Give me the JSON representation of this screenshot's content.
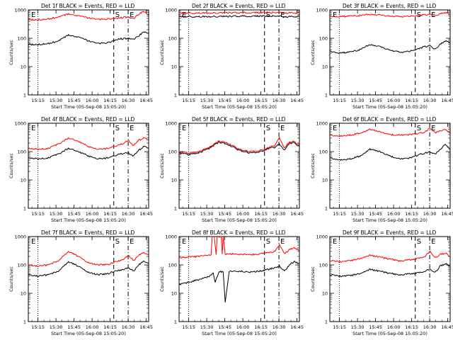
{
  "chart_data": [
    {
      "type": "line",
      "title": "Det 1f BLACK = Events, RED = LLD",
      "xlabel": "Start Time (05-Sep-08 15:05:20)",
      "ylabel": "Counts/sec",
      "ylim": [
        1,
        1000
      ],
      "yscale": "log",
      "x_ticks": [
        "15:15",
        "15:30",
        "15:45",
        "16:00",
        "16:15",
        "16:30",
        "16:45"
      ],
      "y_ticks": [
        "1",
        "10",
        "100",
        "1000"
      ],
      "markers": [
        "E",
        "S",
        "E"
      ],
      "series": [
        {
          "name": "Events",
          "color": "#000000",
          "x": [
            0,
            10,
            20,
            30,
            40,
            50,
            60,
            70,
            80,
            90,
            95,
            100,
            105,
            110,
            115,
            120
          ],
          "y": [
            60,
            60,
            65,
            80,
            130,
            110,
            80,
            65,
            70,
            95,
            95,
            100,
            90,
            120,
            170,
            150
          ]
        },
        {
          "name": "LLD",
          "color": "#ff0000",
          "x": [
            0,
            10,
            20,
            30,
            40,
            50,
            60,
            70,
            80,
            90,
            95,
            100,
            105,
            110,
            115,
            120
          ],
          "y": [
            450,
            450,
            480,
            560,
            720,
            620,
            520,
            460,
            480,
            520,
            540,
            560,
            480,
            700,
            900,
            650
          ]
        }
      ]
    },
    {
      "type": "line",
      "title": "Det 2f BLACK = Events, RED = LLD",
      "xlabel": "Start Time (05-Sep-08 15:05:20)",
      "ylabel": "Counts/sec",
      "ylim": [
        1,
        1000
      ],
      "yscale": "log",
      "x_ticks": [
        "15:15",
        "15:30",
        "15:45",
        "16:00",
        "16:15",
        "16:30",
        "16:45"
      ],
      "y_ticks": [
        "1",
        "10",
        "100",
        "1000"
      ],
      "markers": [
        "E",
        "S",
        "E"
      ],
      "series": [
        {
          "name": "Events",
          "color": "#000000",
          "x": [
            0,
            20,
            40,
            60,
            80,
            95,
            100,
            105,
            110,
            120
          ],
          "y": [
            580,
            580,
            590,
            600,
            600,
            600,
            610,
            560,
            590,
            580
          ]
        },
        {
          "name": "LLD",
          "color": "#ff0000",
          "x": [
            0,
            20,
            40,
            60,
            80,
            95,
            100,
            105,
            110,
            120
          ],
          "y": [
            780,
            780,
            790,
            800,
            800,
            800,
            820,
            760,
            800,
            780
          ]
        }
      ]
    },
    {
      "type": "line",
      "title": "Det 3f BLACK = Events, RED = LLD",
      "xlabel": "Start Time (05-Sep-08 15:05:20)",
      "ylabel": "Counts/sec",
      "ylim": [
        1,
        1000
      ],
      "yscale": "log",
      "x_ticks": [
        "15:15",
        "15:30",
        "15:45",
        "16:00",
        "16:15",
        "16:30",
        "16:45"
      ],
      "y_ticks": [
        "1",
        "10",
        "100",
        "1000"
      ],
      "markers": [
        "E",
        "S",
        "E"
      ],
      "series": [
        {
          "name": "Events",
          "color": "#000000",
          "x": [
            0,
            10,
            20,
            30,
            40,
            50,
            60,
            70,
            80,
            90,
            95,
            100,
            105,
            110,
            115,
            120
          ],
          "y": [
            35,
            30,
            32,
            40,
            60,
            50,
            38,
            32,
            35,
            45,
            50,
            55,
            40,
            60,
            80,
            70
          ]
        },
        {
          "name": "LLD",
          "color": "#ff0000",
          "x": [
            0,
            10,
            20,
            30,
            40,
            50,
            60,
            70,
            80,
            90,
            95,
            100,
            105,
            110,
            115,
            120
          ],
          "y": [
            600,
            580,
            600,
            640,
            700,
            650,
            600,
            580,
            600,
            650,
            660,
            700,
            600,
            720,
            800,
            700
          ]
        }
      ]
    },
    {
      "type": "line",
      "title": "Det 4f BLACK = Events, RED = LLD",
      "xlabel": "Start Time (05-Sep-08 15:05:20)",
      "ylabel": "Counts/sec",
      "ylim": [
        1,
        1000
      ],
      "yscale": "log",
      "x_ticks": [
        "15:15",
        "15:30",
        "15:45",
        "16:00",
        "16:15",
        "16:30",
        "16:45"
      ],
      "y_ticks": [
        "1",
        "10",
        "100",
        "1000"
      ],
      "markers": [
        "E",
        "S",
        "E"
      ],
      "series": [
        {
          "name": "Events",
          "color": "#000000",
          "x": [
            0,
            10,
            20,
            30,
            40,
            50,
            60,
            70,
            80,
            90,
            95,
            100,
            105,
            110,
            115,
            120
          ],
          "y": [
            60,
            55,
            60,
            80,
            130,
            100,
            70,
            55,
            60,
            80,
            85,
            90,
            70,
            110,
            150,
            130
          ]
        },
        {
          "name": "LLD",
          "color": "#ff0000",
          "x": [
            0,
            10,
            20,
            30,
            40,
            50,
            60,
            70,
            80,
            90,
            95,
            100,
            105,
            110,
            115,
            120
          ],
          "y": [
            130,
            120,
            130,
            180,
            300,
            230,
            150,
            120,
            130,
            170,
            190,
            250,
            160,
            250,
            300,
            250
          ]
        }
      ]
    },
    {
      "type": "line",
      "title": "Det 5f BLACK = Events, RED = LLD",
      "xlabel": "Start Time (05-Sep-08 15:05:20)",
      "ylabel": "Counts/sec",
      "ylim": [
        1,
        1000
      ],
      "yscale": "log",
      "x_ticks": [
        "15:15",
        "15:30",
        "15:45",
        "16:00",
        "16:15",
        "16:30",
        "16:45"
      ],
      "y_ticks": [
        "1",
        "10",
        "100",
        "1000"
      ],
      "markers": [
        "E",
        "S",
        "E"
      ],
      "series": [
        {
          "name": "Events",
          "color": "#000000",
          "x": [
            0,
            10,
            20,
            30,
            40,
            50,
            60,
            70,
            80,
            90,
            95,
            100,
            105,
            110,
            115,
            120
          ],
          "y": [
            90,
            80,
            90,
            130,
            220,
            170,
            110,
            90,
            95,
            130,
            140,
            180,
            110,
            200,
            200,
            150
          ]
        },
        {
          "name": "LLD",
          "color": "#ff0000",
          "x": [
            0,
            10,
            20,
            30,
            40,
            50,
            60,
            70,
            80,
            90,
            95,
            100,
            105,
            110,
            115,
            120
          ],
          "y": [
            100,
            90,
            100,
            140,
            240,
            190,
            120,
            100,
            105,
            140,
            160,
            300,
            130,
            220,
            220,
            170
          ]
        }
      ]
    },
    {
      "type": "line",
      "title": "Det 6f BLACK = Events, RED = LLD",
      "xlabel": "Start Time (05-Sep-08 15:05:20)",
      "ylabel": "Counts/sec",
      "ylim": [
        1,
        1000
      ],
      "yscale": "log",
      "x_ticks": [
        "15:15",
        "15:30",
        "15:45",
        "16:00",
        "16:15",
        "16:30",
        "16:45"
      ],
      "y_ticks": [
        "1",
        "10",
        "100",
        "1000"
      ],
      "markers": [
        "E",
        "S",
        "E"
      ],
      "series": [
        {
          "name": "Events",
          "color": "#000000",
          "x": [
            0,
            10,
            20,
            30,
            40,
            50,
            60,
            70,
            80,
            90,
            95,
            100,
            105,
            110,
            115,
            120
          ],
          "y": [
            60,
            50,
            55,
            70,
            120,
            100,
            70,
            55,
            60,
            80,
            90,
            100,
            80,
            120,
            180,
            120
          ]
        },
        {
          "name": "LLD",
          "color": "#ff0000",
          "x": [
            0,
            10,
            20,
            30,
            40,
            50,
            60,
            70,
            80,
            90,
            95,
            100,
            105,
            110,
            115,
            120
          ],
          "y": [
            380,
            350,
            380,
            450,
            600,
            500,
            400,
            380,
            400,
            450,
            500,
            700,
            450,
            550,
            600,
            450
          ]
        }
      ]
    },
    {
      "type": "line",
      "title": "Det 7f BLACK = Events, RED = LLD",
      "xlabel": "Start Time (05-Sep-08 15:05:20)",
      "ylabel": "Counts/sec",
      "ylim": [
        1,
        1000
      ],
      "yscale": "log",
      "x_ticks": [
        "15:15",
        "15:30",
        "15:45",
        "16:00",
        "16:15",
        "16:30",
        "16:45"
      ],
      "y_ticks": [
        "1",
        "10",
        "100",
        "1000"
      ],
      "markers": [
        "E",
        "S",
        "E"
      ],
      "series": [
        {
          "name": "Events",
          "color": "#000000",
          "x": [
            0,
            10,
            20,
            30,
            40,
            50,
            60,
            70,
            80,
            90,
            95,
            100,
            105,
            110,
            115,
            120
          ],
          "y": [
            45,
            40,
            45,
            60,
            130,
            90,
            55,
            45,
            50,
            65,
            70,
            80,
            60,
            100,
            140,
            110
          ]
        },
        {
          "name": "LLD",
          "color": "#ff0000",
          "x": [
            0,
            10,
            20,
            30,
            40,
            50,
            60,
            70,
            80,
            90,
            95,
            100,
            105,
            110,
            115,
            120
          ],
          "y": [
            100,
            90,
            100,
            140,
            300,
            200,
            120,
            100,
            105,
            140,
            160,
            220,
            140,
            220,
            280,
            220
          ]
        }
      ]
    },
    {
      "type": "line",
      "title": "Det 8f BLACK = Events, RED = LLD",
      "xlabel": "Start Time (05-Sep-08 15:05:20)",
      "ylabel": "Counts/sec",
      "ylim": [
        1,
        1000
      ],
      "yscale": "log",
      "x_ticks": [
        "15:15",
        "15:30",
        "15:45",
        "16:00",
        "16:15",
        "16:30",
        "16:45"
      ],
      "y_ticks": [
        "1",
        "10",
        "100",
        "1000"
      ],
      "markers": [
        "E",
        "S",
        "E"
      ],
      "series": [
        {
          "name": "Events",
          "color": "#000000",
          "x": [
            0,
            10,
            20,
            30,
            34,
            36,
            40,
            44,
            46,
            50,
            60,
            70,
            80,
            90,
            95,
            100,
            105,
            110,
            115,
            120
          ],
          "y": [
            20,
            25,
            30,
            40,
            50,
            25,
            60,
            55,
            5,
            60,
            60,
            55,
            60,
            70,
            80,
            90,
            60,
            100,
            130,
            110
          ]
        },
        {
          "name": "LLD",
          "color": "#ff0000",
          "x": [
            0,
            10,
            20,
            30,
            32,
            33,
            35,
            37,
            38,
            42,
            43,
            44,
            46,
            50,
            60,
            70,
            80,
            90,
            95,
            100,
            105,
            110,
            115,
            120
          ],
          "y": [
            180,
            190,
            200,
            220,
            220,
            1000,
            1000,
            230,
            1000,
            1000,
            240,
            1000,
            230,
            250,
            240,
            230,
            240,
            270,
            300,
            500,
            250,
            350,
            400,
            320
          ]
        }
      ]
    },
    {
      "type": "line",
      "title": "Det 9f BLACK = Events, RED = LLD",
      "xlabel": "Start Time (05-Sep-08 15:05:20)",
      "ylabel": "Counts/sec",
      "ylim": [
        1,
        1000
      ],
      "yscale": "log",
      "x_ticks": [
        "15:15",
        "15:30",
        "15:45",
        "16:00",
        "16:15",
        "16:30",
        "16:45"
      ],
      "y_ticks": [
        "1",
        "10",
        "100",
        "1000"
      ],
      "markers": [
        "E",
        "S",
        "E"
      ],
      "series": [
        {
          "name": "Events",
          "color": "#000000",
          "x": [
            0,
            10,
            20,
            30,
            40,
            50,
            60,
            70,
            80,
            90,
            95,
            100,
            105,
            110,
            115,
            120
          ],
          "y": [
            45,
            40,
            42,
            50,
            70,
            60,
            50,
            45,
            48,
            55,
            60,
            70,
            55,
            90,
            110,
            90
          ]
        },
        {
          "name": "LLD",
          "color": "#ff0000",
          "x": [
            0,
            10,
            20,
            30,
            40,
            50,
            60,
            70,
            80,
            90,
            95,
            100,
            105,
            110,
            115,
            120
          ],
          "y": [
            140,
            130,
            140,
            170,
            220,
            190,
            160,
            140,
            150,
            180,
            200,
            300,
            180,
            230,
            260,
            200
          ]
        }
      ]
    }
  ]
}
